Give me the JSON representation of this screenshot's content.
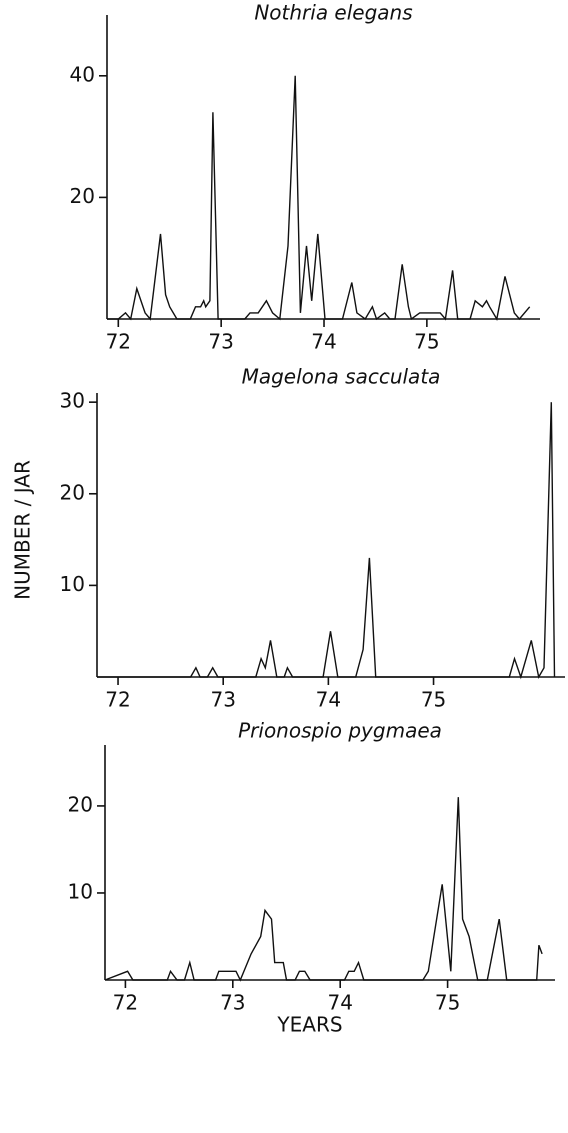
{
  "ylabel": "NUMBER / JAR",
  "chart_data": [
    {
      "type": "line",
      "title": "Nothria elegans",
      "color": "#111111",
      "x": [
        71.89,
        72.0,
        72.07,
        72.12,
        72.18,
        72.26,
        72.31,
        72.41,
        72.46,
        72.5,
        72.57,
        72.7,
        72.75,
        72.8,
        72.83,
        72.85,
        72.89,
        72.92,
        72.97,
        73.23,
        73.28,
        73.36,
        73.44,
        73.5,
        73.57,
        73.65,
        73.72,
        73.77,
        73.83,
        73.88,
        73.94,
        74.01,
        74.18,
        74.27,
        74.32,
        74.4,
        74.47,
        74.51,
        74.59,
        74.64,
        74.69,
        74.76,
        74.82,
        74.85,
        74.93,
        75.01,
        75.13,
        75.18,
        75.25,
        75.3,
        75.42,
        75.47,
        75.54,
        75.58,
        75.61,
        75.68,
        75.76,
        75.85,
        75.9,
        76.0
      ],
      "values": [
        0,
        0,
        1,
        0,
        5,
        1,
        0,
        14,
        4,
        2,
        0,
        0,
        2,
        2,
        3,
        2,
        3,
        34,
        0,
        0,
        1,
        1,
        3,
        1,
        0,
        12,
        40,
        1,
        12,
        3,
        14,
        0,
        0,
        6,
        1,
        0,
        2,
        0,
        1,
        0,
        0,
        9,
        2,
        0,
        1,
        1,
        1,
        0,
        8,
        0,
        0,
        3,
        2,
        3,
        2,
        0,
        7,
        1,
        0,
        2
      ],
      "xlim": [
        71.89,
        76.1
      ],
      "xticks": [
        72,
        73,
        74,
        75
      ],
      "ylim": [
        0,
        50
      ],
      "yticks": [
        20,
        40
      ]
    },
    {
      "type": "line",
      "title": "Magelona sacculata",
      "color": "#111111",
      "x": [
        71.8,
        72.69,
        72.74,
        72.78,
        72.85,
        72.9,
        72.95,
        73.31,
        73.36,
        73.4,
        73.45,
        73.51,
        73.58,
        73.61,
        73.66,
        73.95,
        74.02,
        74.09,
        74.26,
        74.33,
        74.39,
        74.45,
        75.72,
        75.77,
        75.83,
        75.93,
        76.0,
        76.05,
        76.12,
        76.15
      ],
      "values": [
        0,
        0,
        1,
        0,
        0,
        1,
        0,
        0,
        2,
        1,
        4,
        0,
        0,
        1,
        0,
        0,
        5,
        0,
        0,
        3,
        13,
        0,
        0,
        2,
        0,
        4,
        0,
        1,
        30,
        0
      ],
      "xlim": [
        71.8,
        76.25
      ],
      "xticks": [
        72,
        73,
        74,
        75
      ],
      "ylim": [
        0,
        31
      ],
      "yticks": [
        10,
        20,
        30
      ]
    },
    {
      "type": "line",
      "title": "Prionospio pygmaea",
      "xlabel": "YEARS",
      "color": "#111111",
      "x": [
        71.81,
        72.02,
        72.07,
        72.39,
        72.42,
        72.48,
        72.55,
        72.6,
        72.64,
        72.84,
        72.87,
        73.03,
        73.07,
        73.17,
        73.26,
        73.3,
        73.36,
        73.39,
        73.47,
        73.5,
        73.58,
        73.62,
        73.67,
        73.72,
        74.04,
        74.08,
        74.13,
        74.17,
        74.22,
        74.77,
        74.82,
        74.95,
        75.03,
        75.1,
        75.14,
        75.2,
        75.28,
        75.37,
        75.48,
        75.55,
        75.83,
        75.85,
        75.88
      ],
      "values": [
        0,
        1,
        0,
        0,
        1,
        0,
        0,
        2,
        0,
        0,
        1,
        1,
        0,
        3,
        5,
        8,
        7,
        2,
        2,
        0,
        0,
        1,
        1,
        0,
        0,
        1,
        1,
        2,
        0,
        0,
        1,
        11,
        1,
        21,
        7,
        5,
        0,
        0,
        7,
        0,
        0,
        4,
        3
      ],
      "xlim": [
        71.81,
        76.0
      ],
      "xticks": [
        72,
        73,
        74,
        75
      ],
      "ylim": [
        0,
        27
      ],
      "yticks": [
        10,
        20
      ]
    }
  ]
}
